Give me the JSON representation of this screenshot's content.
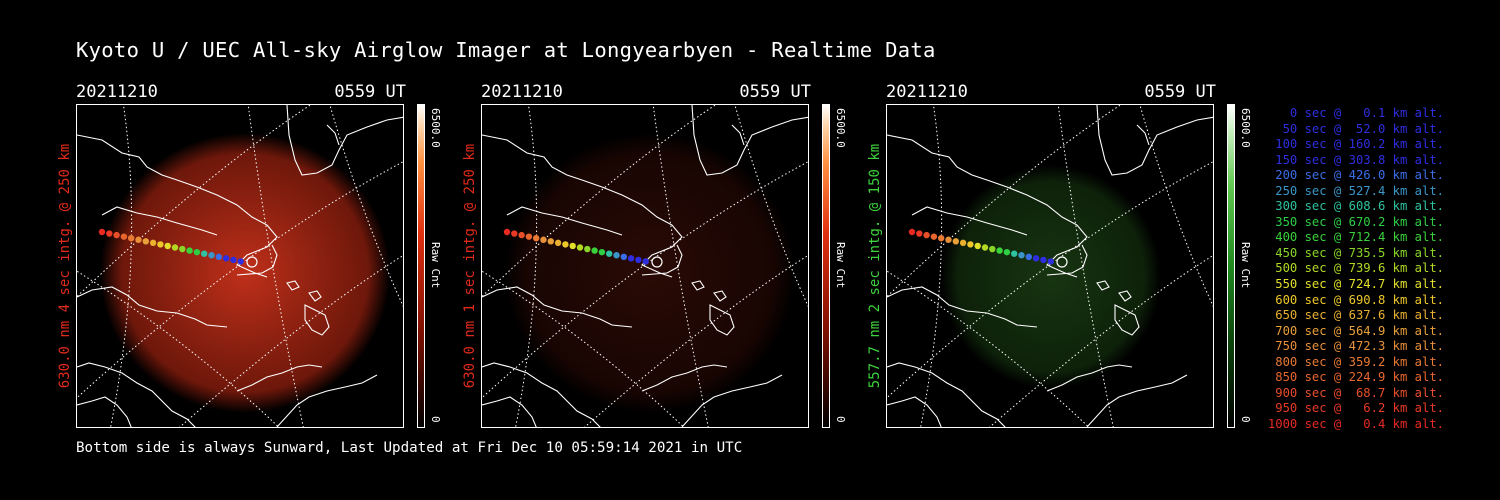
{
  "title": "Kyoto U / UEC All-sky Airglow Imager at Longyearbyen - Realtime Data",
  "footer": "Bottom side is always Sunward, Last Updated at Fri Dec 10 05:59:14 2021 in UTC",
  "panels": [
    {
      "date": "20211210",
      "time": "0559 UT",
      "ylabel": "630.0 nm 4 sec intg. @ 250 km",
      "label_color": "#e02a1a",
      "cbar_max": "6500.0",
      "cbar_min": "0",
      "cbar_unit": "Raw Cnt",
      "glow": "red",
      "intensity": 1.0
    },
    {
      "date": "20211210",
      "time": "0559 UT",
      "ylabel": "630.0 nm 1 sec intg. @ 250 km",
      "label_color": "#e02a1a",
      "cbar_max": "6500.0",
      "cbar_min": "0",
      "cbar_unit": "Raw Cnt",
      "glow": "red",
      "intensity": 0.22
    },
    {
      "date": "20211210",
      "time": "0559 UT",
      "ylabel": "557.7 nm 2 sec intg. @ 150 km",
      "label_color": "#3cd23c",
      "cbar_max": "6500.0",
      "cbar_min": "0",
      "cbar_unit": "Raw Cnt",
      "glow": "green",
      "intensity": 0.5
    }
  ],
  "legend": [
    {
      "text": "0 sec @   0.1 km alt.",
      "color": "#2e2ee0"
    },
    {
      "text": "50 sec @  52.0 km alt.",
      "color": "#2e2ee0"
    },
    {
      "text": "100 sec @ 160.2 km alt.",
      "color": "#2e2ee0"
    },
    {
      "text": "150 sec @ 303.8 km alt.",
      "color": "#2e2ee0"
    },
    {
      "text": "200 sec @ 426.0 km alt.",
      "color": "#3a6ee8"
    },
    {
      "text": "250 sec @ 527.4 km alt.",
      "color": "#3a96c8"
    },
    {
      "text": "300 sec @ 608.6 km alt.",
      "color": "#2ec2a0"
    },
    {
      "text": "350 sec @ 670.2 km alt.",
      "color": "#2ecf44"
    },
    {
      "text": "400 sec @ 712.4 km alt.",
      "color": "#3ad23a"
    },
    {
      "text": "450 sec @ 735.5 km alt.",
      "color": "#8ad628"
    },
    {
      "text": "500 sec @ 739.6 km alt.",
      "color": "#b2d824"
    },
    {
      "text": "550 sec @ 724.7 km alt.",
      "color": "#e2e02a"
    },
    {
      "text": "600 sec @ 690.8 km alt.",
      "color": "#eec82a"
    },
    {
      "text": "650 sec @ 637.6 km alt.",
      "color": "#eab030"
    },
    {
      "text": "700 sec @ 564.9 km alt.",
      "color": "#e8a038"
    },
    {
      "text": "750 sec @ 472.3 km alt.",
      "color": "#e8903a"
    },
    {
      "text": "800 sec @ 359.2 km alt.",
      "color": "#e87a34"
    },
    {
      "text": "850 sec @ 224.9 km alt.",
      "color": "#e8662e"
    },
    {
      "text": "900 sec @  68.7 km alt.",
      "color": "#e84e2a"
    },
    {
      "text": "950 sec @   6.2 km alt.",
      "color": "#e83a26"
    },
    {
      "text": "1000 sec @   0.4 km alt.",
      "color": "#e82a22"
    }
  ]
}
